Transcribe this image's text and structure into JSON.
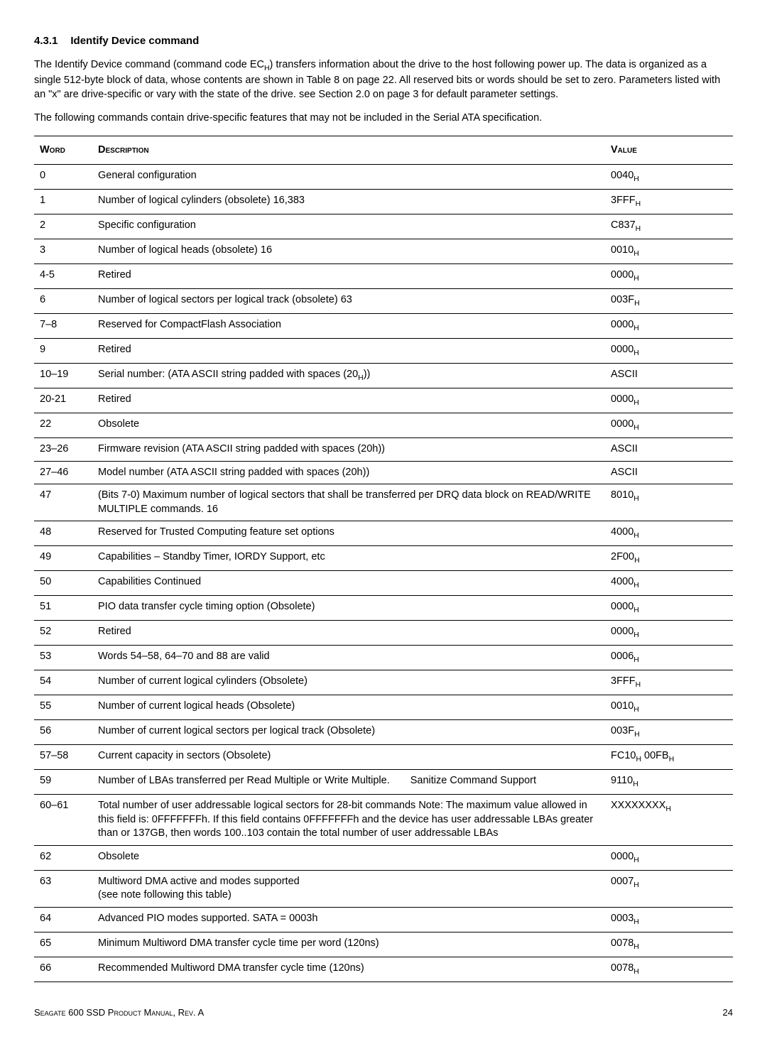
{
  "heading": {
    "number": "4.3.1",
    "title": "Identify Device command"
  },
  "paragraphs": {
    "p1_a": "The Identify Device command (command code EC",
    "p1_b": ") transfers information about the drive to the host following power up. The data is organized as a single 512-byte block of data, whose contents are shown in Table 8 on page 22. All reserved bits or words should be set to zero. Parameters listed with an \"x\" are drive-specific or vary with the state of the drive. see Section 2.0 on page 3 for default parameter settings.",
    "p2": "The following commands contain drive-specific features that may not be included in the Serial ATA specification."
  },
  "table": {
    "headers": {
      "word": "Word",
      "description": "Description",
      "value": "Value"
    },
    "rows": [
      {
        "word": "0",
        "desc": "General configuration",
        "val": "0040",
        "hex": true
      },
      {
        "word": "1",
        "desc": "Number of logical cylinders (obsolete) 16,383",
        "val": "3FFF",
        "hex": true
      },
      {
        "word": "2",
        "desc": "Specific configuration",
        "val": "C837",
        "hex": true
      },
      {
        "word": "3",
        "desc": "Number of logical heads (obsolete) 16",
        "val": "0010",
        "hex": true
      },
      {
        "word": "4-5",
        "desc": "Retired",
        "val": "0000",
        "hex": true
      },
      {
        "word": "6",
        "desc": "Number of logical sectors per logical track (obsolete) 63",
        "val": "003F",
        "hex": true
      },
      {
        "word": "7–8",
        "desc": "Reserved for CompactFlash Association",
        "val": "0000",
        "hex": true
      },
      {
        "word": "9",
        "desc": "Retired",
        "val": "0000",
        "hex": true
      },
      {
        "word": "10–19",
        "desc_a": "Serial number: (ATA ASCII string padded with spaces (20",
        "desc_b": "))",
        "val": "ASCII",
        "hex": false,
        "sub_in_desc": true
      },
      {
        "word": "20-21",
        "desc": "Retired",
        "val": "0000",
        "hex": true
      },
      {
        "word": "22",
        "desc": "Obsolete",
        "val": "0000",
        "hex": true
      },
      {
        "word": "23–26",
        "desc": "Firmware revision (ATA ASCII string padded with spaces (20h))",
        "val": "ASCII",
        "hex": false
      },
      {
        "word": "27–46",
        "desc": "Model number (ATA ASCII string padded with spaces (20h))",
        "val": "ASCII",
        "hex": false
      },
      {
        "word": "47",
        "desc": "(Bits 7-0) Maximum number of logical sectors that shall be transferred per DRQ data block on READ/WRITE MULTIPLE commands.  16",
        "val": "8010",
        "hex": true
      },
      {
        "word": "48",
        "desc": "Reserved for Trusted Computing feature set options",
        "val": "4000",
        "hex": true
      },
      {
        "word": "49",
        "desc": "Capabilities – Standby Timer, IORDY Support, etc",
        "val": "2F00",
        "hex": true
      },
      {
        "word": "50",
        "desc": "Capabilities Continued",
        "val": "4000",
        "hex": true
      },
      {
        "word": "51",
        "desc": "PIO data transfer cycle timing option (Obsolete)",
        "val": "0000",
        "hex": true
      },
      {
        "word": "52",
        "desc": "Retired",
        "val": "0000",
        "hex": true
      },
      {
        "word": "53",
        "desc": "Words 54–58, 64–70 and 88 are valid",
        "val": "0006",
        "hex": true
      },
      {
        "word": "54",
        "desc": "Number of current logical cylinders (Obsolete)",
        "val": "3FFF",
        "hex": true
      },
      {
        "word": "55",
        "desc": "Number of current logical heads (Obsolete)",
        "val": "0010",
        "hex": true
      },
      {
        "word": "56",
        "desc": "Number of current logical sectors per logical track (Obsolete)",
        "val": "003F",
        "hex": true
      },
      {
        "word": "57–58",
        "desc": "Current capacity in sectors (Obsolete)",
        "val_double": [
          "FC10",
          "00FB"
        ],
        "hex": true
      },
      {
        "word": "59",
        "desc": "Number of LBAs transferred per Read Multiple or Write Multiple.  Sanitize Command Support",
        "val": "9110",
        "hex": true
      },
      {
        "word": "60–61",
        "desc": "Total number of user addressable logical sectors for 28-bit commands  Note: The maximum value allowed in this field is:  0FFFFFFFh. If this field contains 0FFFFFFFh and the device has user addressable LBAs greater than or 137GB,  then words 100..103 contain the total number of user addressable LBAs",
        "val": "XXXXXXXX",
        "hex": true
      },
      {
        "word": "62",
        "desc": "Obsolete",
        "val": "0000",
        "hex": true
      },
      {
        "word": "63",
        "desc": "Multiword DMA active and modes supported\n(see note following this table)",
        "val": "0007",
        "hex": true
      },
      {
        "word": "64",
        "desc": "Advanced PIO modes supported.  SATA = 0003h",
        "val": "0003",
        "hex": true
      },
      {
        "word": "65",
        "desc": "Minimum Multiword DMA transfer cycle time per word  (120ns)",
        "val": "0078",
        "hex": true
      },
      {
        "word": "66",
        "desc": "Recommended Multiword DMA transfer cycle time (120ns)",
        "val": "0078",
        "hex": true
      }
    ]
  },
  "footer": {
    "left": "Seagate 600 SSD Product Manual, Rev. A",
    "page": "24"
  },
  "hex_sub": "H"
}
